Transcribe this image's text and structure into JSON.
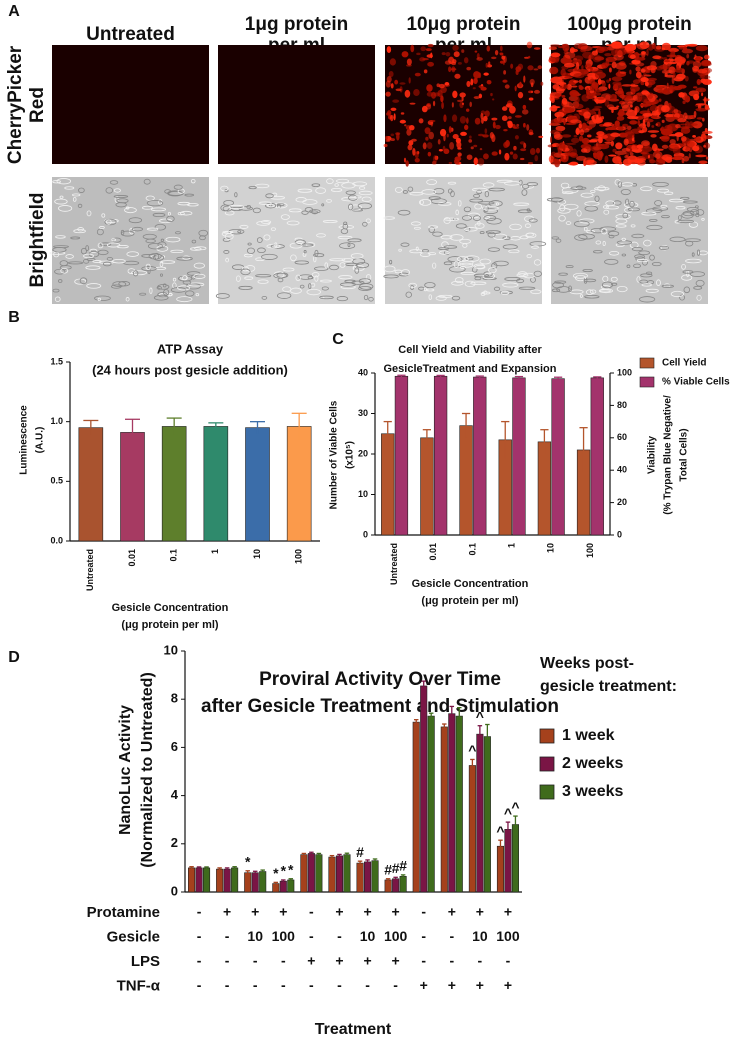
{
  "panel_a": {
    "label": "A",
    "columns": [
      [
        "Untreated"
      ],
      [
        "1μg protein",
        "per ml"
      ],
      [
        "10μg protein",
        "per ml"
      ],
      [
        "100μg protein",
        "per ml"
      ]
    ],
    "rows": [
      [
        "CherryPicker",
        "Red"
      ],
      [
        "Brightfield"
      ]
    ]
  },
  "chart_data": [
    {
      "type": "bar",
      "panel_label": "B",
      "title": [
        "ATP Assay",
        "(24 hours post gesicle addition)"
      ],
      "y_label": [
        "Luminescence",
        "(A.U.)"
      ],
      "x_label": [
        "Gesicle Concentration",
        "(μg protein per ml)"
      ],
      "categories": [
        "Untreated",
        "0.01",
        "0.1",
        "1",
        "10",
        "100"
      ],
      "values": [
        0.95,
        0.91,
        0.96,
        0.96,
        0.95,
        0.96
      ],
      "errors": [
        0.06,
        0.11,
        0.07,
        0.03,
        0.05,
        0.11
      ],
      "colors": [
        "#a9532f",
        "#a63a62",
        "#5e7f2c",
        "#2f8a6c",
        "#3b6da9",
        "#fb9a4b"
      ],
      "ylim": [
        0,
        1.5
      ],
      "yticks": [
        {
          "value": 0,
          "label": "0.0"
        },
        {
          "value": 0.5,
          "label": "0.5"
        },
        {
          "value": 1,
          "label": "1.0"
        },
        {
          "value": 1.5,
          "label": "1.5"
        }
      ]
    },
    {
      "type": "bar",
      "panel_label": "C",
      "title": [
        "Cell Yield and Viability after",
        "GesicleTreatment and Expansion"
      ],
      "y_label": [
        "Number of Viable Cells",
        "(x10⁵)"
      ],
      "y2_label": [
        "Viability",
        "(% Trypan Blue Negative/",
        "Total Cells)"
      ],
      "x_label": [
        "Gesicle Concentration",
        "(μg protein per ml)"
      ],
      "categories": [
        "Untreated",
        "0.01",
        "0.1",
        "1",
        "10",
        "100"
      ],
      "series": [
        {
          "name": "Cell Yield",
          "color": "#b4552c",
          "values": [
            25,
            24,
            27,
            23.5,
            23,
            21
          ],
          "errors": [
            3,
            2,
            3,
            4.5,
            3,
            5.5
          ]
        },
        {
          "name": "% Viable Cells",
          "color": "#a3336c",
          "axis": "y2",
          "values": [
            98,
            98,
            97.5,
            97,
            96.5,
            97
          ],
          "errors": [
            0.6,
            0.5,
            0.6,
            0.8,
            0.9,
            0.6
          ]
        }
      ],
      "ylim": [
        0,
        40
      ],
      "yticks": [
        0,
        10,
        20,
        30,
        40
      ],
      "y2lim": [
        0,
        100
      ],
      "y2ticks": [
        0,
        20,
        40,
        60,
        80,
        100
      ],
      "legend": "top-right"
    },
    {
      "type": "bar",
      "panel_label": "D",
      "title": [
        "Proviral Activity Over Time",
        "after Gesicle Treatment and Stimulation"
      ],
      "y_label": [
        "NanoLuc Activity",
        "(Normalized to Untreated)"
      ],
      "x_label": "Treatment",
      "legend_title": [
        "Weeks post-",
        "gesicle treatment:"
      ],
      "series": [
        {
          "name": "1 week",
          "color": "#a5411c",
          "values": [
            1.0,
            0.95,
            0.8,
            0.35,
            1.55,
            1.45,
            1.2,
            0.5,
            7.05,
            6.85,
            5.25,
            1.9
          ],
          "errors": [
            0.05,
            0.05,
            0.08,
            0.05,
            0.05,
            0.06,
            0.08,
            0.05,
            0.1,
            0.12,
            0.25,
            0.25
          ],
          "markers": [
            null,
            null,
            "*",
            "*",
            null,
            null,
            "#",
            "#",
            null,
            null,
            "^",
            "^"
          ]
        },
        {
          "name": "2 weeks",
          "color": "#7a1545",
          "values": [
            1.0,
            0.95,
            0.8,
            0.45,
            1.6,
            1.5,
            1.25,
            0.55,
            8.55,
            7.4,
            6.55,
            2.6
          ],
          "errors": [
            0.04,
            0.05,
            0.06,
            0.05,
            0.05,
            0.06,
            0.08,
            0.06,
            0.2,
            0.3,
            0.35,
            0.3
          ],
          "markers": [
            null,
            null,
            null,
            "*",
            null,
            null,
            null,
            "#",
            null,
            null,
            "^",
            "^"
          ]
        },
        {
          "name": "3 weeks",
          "color": "#3f6b1c",
          "values": [
            1.0,
            1.0,
            0.85,
            0.5,
            1.55,
            1.55,
            1.3,
            0.65,
            7.3,
            7.3,
            6.45,
            2.8
          ],
          "errors": [
            0.04,
            0.05,
            0.06,
            0.05,
            0.05,
            0.06,
            0.07,
            0.06,
            0.12,
            0.35,
            0.5,
            0.35
          ],
          "markers": [
            null,
            null,
            null,
            "*",
            null,
            null,
            null,
            "#",
            null,
            null,
            null,
            "^"
          ]
        }
      ],
      "treatment_rows": [
        {
          "name": "Protamine",
          "entries": [
            "-",
            "+",
            "+",
            "+",
            "-",
            "+",
            "+",
            "+",
            "-",
            "+",
            "+",
            "+"
          ]
        },
        {
          "name": "Gesicle",
          "entries": [
            "-",
            "-",
            "10",
            "100",
            "-",
            "-",
            "10",
            "100",
            "-",
            "-",
            "10",
            "100"
          ]
        },
        {
          "name": "LPS",
          "entries": [
            "-",
            "-",
            "-",
            "-",
            "+",
            "+",
            "+",
            "+",
            "-",
            "-",
            "-",
            "-"
          ]
        },
        {
          "name": "TNF-α",
          "entries": [
            "-",
            "-",
            "-",
            "-",
            "-",
            "-",
            "-",
            "-",
            "+",
            "+",
            "+",
            "+"
          ]
        }
      ],
      "ylim": [
        0,
        10
      ],
      "yticks": [
        0,
        2,
        4,
        6,
        8,
        10
      ],
      "legend": "right"
    }
  ]
}
